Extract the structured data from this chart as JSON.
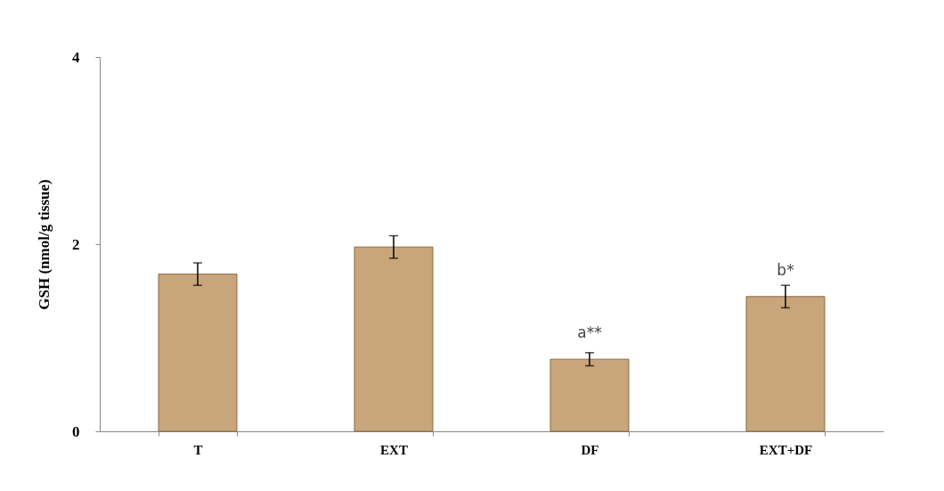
{
  "chart_data": {
    "type": "bar",
    "ylabel": "GSH (nmol/g tissue)",
    "categories": [
      "T",
      "EXT",
      "DF",
      "EXT+DF"
    ],
    "values": [
      1.68,
      1.97,
      0.77,
      1.44
    ],
    "errors": [
      0.12,
      0.12,
      0.07,
      0.12
    ],
    "color": "#c8a57a",
    "ylim": [
      0,
      4
    ],
    "yticks": [
      0,
      2,
      4
    ],
    "grid": false,
    "annotations": [
      {
        "text": "a**",
        "x": "DF",
        "y": 0.77
      },
      {
        "text": "b*",
        "x": "EXT+DF",
        "y": 1.44
      }
    ]
  }
}
